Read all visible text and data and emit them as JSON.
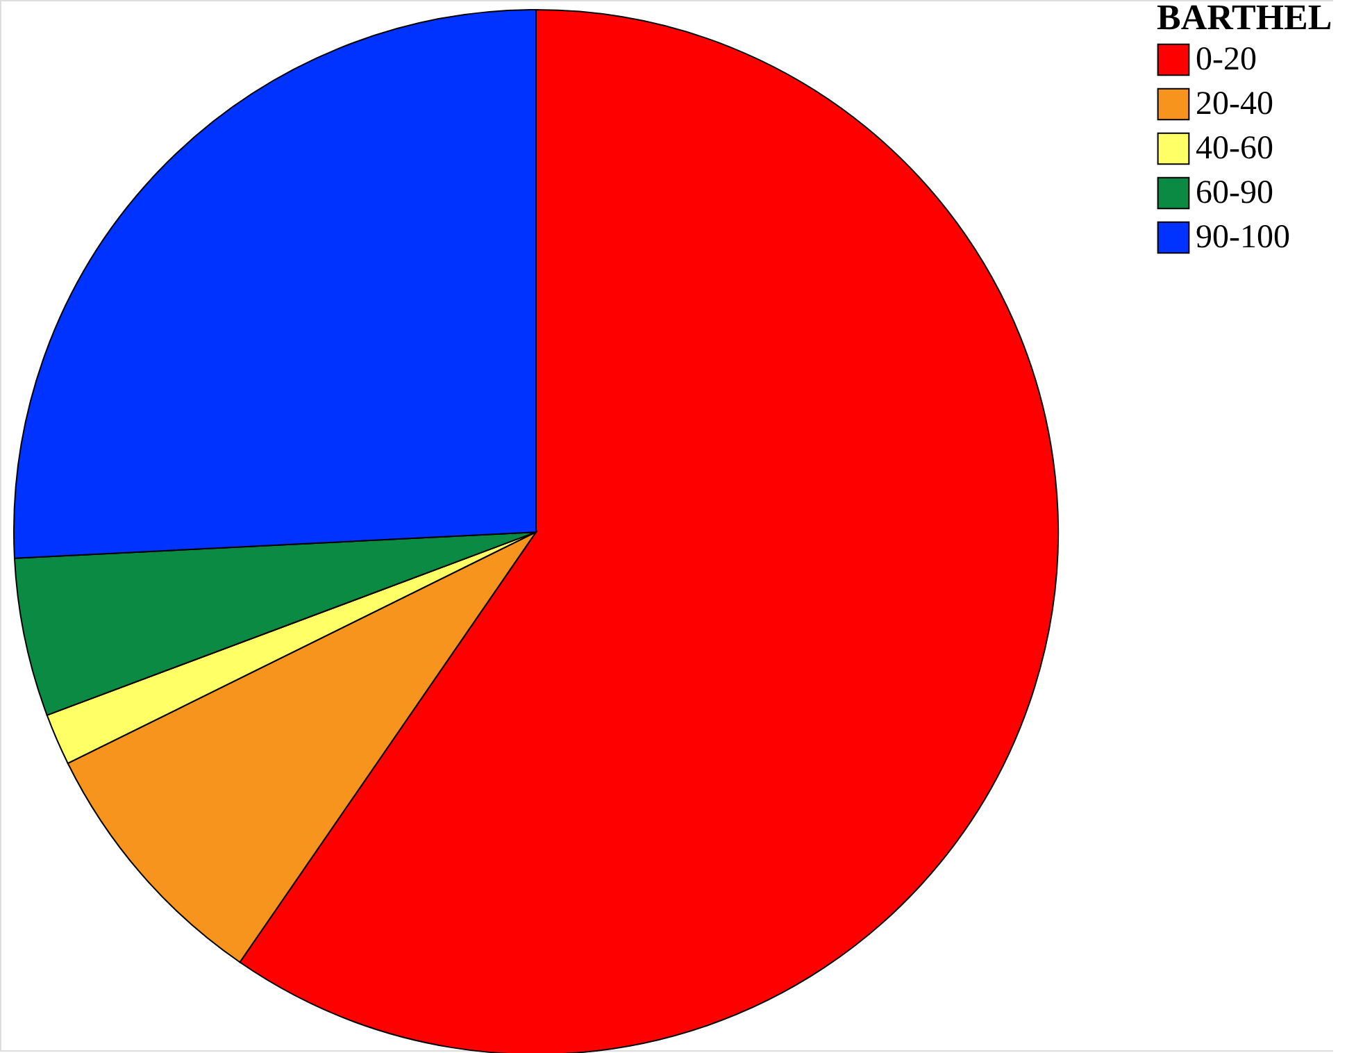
{
  "chart_data": {
    "type": "pie",
    "legend_title": "BARTHEL",
    "legend": "top right",
    "categories": [
      "0-20",
      "20-40",
      "40-60",
      "60-90",
      "90-100"
    ],
    "values": [
      59.6,
      8.1,
      1.6,
      4.9,
      25.8
    ],
    "colors": [
      "#ff0000",
      "#f7941d",
      "#ffff66",
      "#0b8a44",
      "#0033ff"
    ]
  }
}
